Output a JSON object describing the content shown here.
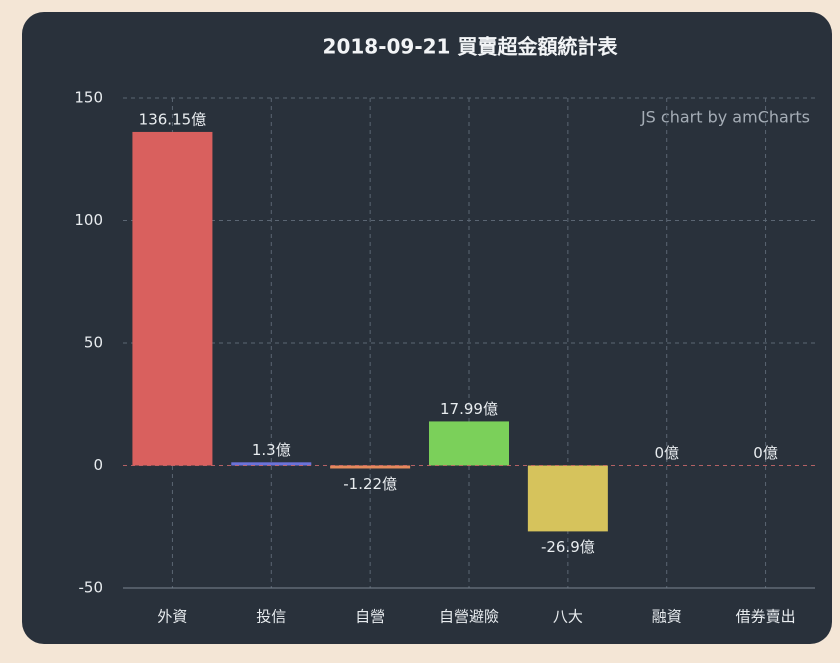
{
  "chart_data": {
    "type": "bar",
    "title": "2018-09-21 買賣超金額統計表",
    "watermark": "JS chart by amCharts",
    "categories": [
      "外資",
      "投信",
      "自營",
      "自營避險",
      "八大",
      "融資",
      "借券賣出"
    ],
    "values": [
      136.15,
      1.3,
      -1.22,
      17.99,
      -26.9,
      0,
      0
    ],
    "value_labels": [
      "136.15億",
      "1.3億",
      "-1.22億",
      "17.99億",
      "-26.9億",
      "0億",
      "0億"
    ],
    "colors": [
      "#d9605e",
      "#6b72d8",
      "#e58a5c",
      "#7bd05a",
      "#d6c35c",
      "#d9605e",
      "#d9605e"
    ],
    "ylim": [
      -50,
      150
    ],
    "yticks": [
      -50,
      0,
      50,
      100,
      150
    ],
    "grid": true
  }
}
